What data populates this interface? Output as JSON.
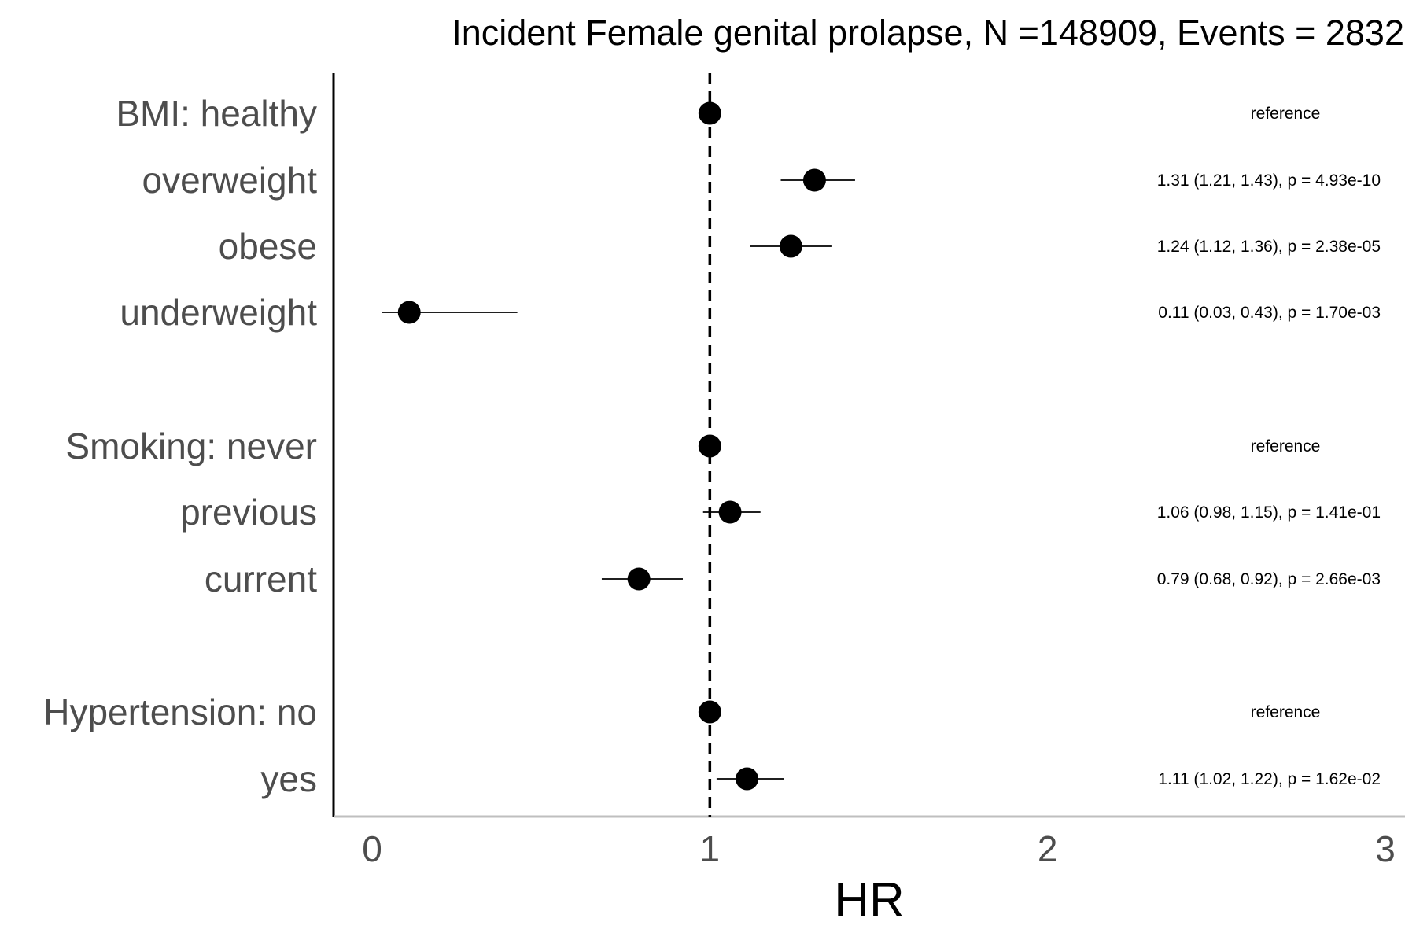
{
  "chart_data": {
    "type": "forest",
    "title": "Incident Female genital prolapse, N =148909, Events = 2832",
    "xlabel": "HR",
    "ylabel": "",
    "xlim": [
      0,
      3
    ],
    "xticks": [
      0,
      1,
      2,
      3
    ],
    "reference_line": 1,
    "rows": [
      {
        "label": "BMI: healthy",
        "hr": 1.0,
        "lower": 1.0,
        "upper": 1.0,
        "annotation": "reference"
      },
      {
        "label": "overweight",
        "hr": 1.31,
        "lower": 1.21,
        "upper": 1.43,
        "annotation": "1.31 (1.21, 1.43), p = 4.93e-10"
      },
      {
        "label": "obese",
        "hr": 1.24,
        "lower": 1.12,
        "upper": 1.36,
        "annotation": "1.24 (1.12, 1.36), p = 2.38e-05"
      },
      {
        "label": "underweight",
        "hr": 0.11,
        "lower": 0.03,
        "upper": 0.43,
        "annotation": "0.11 (0.03, 0.43), p = 1.70e-03"
      },
      {
        "label": "Smoking: never",
        "hr": 1.0,
        "lower": 1.0,
        "upper": 1.0,
        "annotation": "reference"
      },
      {
        "label": "previous",
        "hr": 1.06,
        "lower": 0.98,
        "upper": 1.15,
        "annotation": "1.06 (0.98, 1.15), p = 1.41e-01"
      },
      {
        "label": "current",
        "hr": 0.79,
        "lower": 0.68,
        "upper": 0.92,
        "annotation": "0.79 (0.68, 0.92), p = 2.66e-03"
      },
      {
        "label": "Hypertension: no",
        "hr": 1.0,
        "lower": 1.0,
        "upper": 1.0,
        "annotation": "reference"
      },
      {
        "label": "yes",
        "hr": 1.11,
        "lower": 1.02,
        "upper": 1.22,
        "annotation": "1.11 (1.02, 1.22), p = 1.62e-02"
      }
    ],
    "colors": {
      "point": "#000000",
      "ci_line": "#000000",
      "ref_line": "#000000",
      "y_axis": "#000000",
      "x_axis": "#bfbfbf",
      "label_text": "#4d4d4d"
    }
  }
}
